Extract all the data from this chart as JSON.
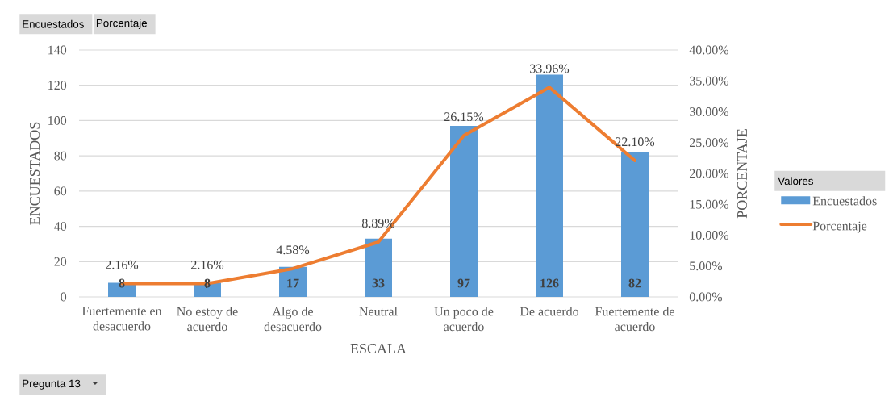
{
  "chart_data": {
    "type": "bar",
    "categories": [
      "Fuertemente en desacuerdo",
      "No estoy de acuerdo",
      "Algo de desacuerdo",
      "Neutral",
      "Un poco de acuerdo",
      "De acuerdo",
      "Fuertemente de acuerdo"
    ],
    "xlabel": "ESCALA",
    "ylabel": "ENCUESTADOS",
    "y2label": "PORCENTAJE",
    "legend_title": "Valores",
    "series": [
      {
        "name": "Encuestados",
        "color": "#5b9bd5",
        "values": [
          8,
          8,
          17,
          33,
          97,
          126,
          82
        ],
        "value_labels": [
          "8",
          "8",
          "17",
          "33",
          "97",
          "126",
          "82"
        ]
      },
      {
        "name": "Porcentaje",
        "type": "line",
        "axis": "y2",
        "color": "#ed7d31",
        "values": [
          2.16,
          2.16,
          4.58,
          8.89,
          26.15,
          33.96,
          22.1
        ],
        "value_labels": [
          "2.16%",
          "2.16%",
          "4.58%",
          "8.89%",
          "26.15%",
          "33.96%",
          "22.10%"
        ]
      }
    ],
    "ylim": [
      0,
      140
    ],
    "yticks": [
      0,
      20,
      40,
      60,
      80,
      100,
      120,
      140
    ],
    "y2lim": [
      0,
      40
    ],
    "y2ticks": [
      {
        "value": 0,
        "label": "0.00%"
      },
      {
        "value": 5,
        "label": "5.00%"
      },
      {
        "value": 10,
        "label": "10.00%"
      },
      {
        "value": 15,
        "label": "15.00%"
      },
      {
        "value": 20,
        "label": "20.00%"
      },
      {
        "value": 25,
        "label": "25.00%"
      },
      {
        "value": 30,
        "label": "30.00%"
      },
      {
        "value": 35,
        "label": "35.00%"
      },
      {
        "value": 40,
        "label": "40.00%"
      }
    ],
    "grid": "y",
    "legend": "right",
    "annotations": [
      "Encuestados",
      "Porcentaje",
      "Pregunta 13"
    ]
  }
}
